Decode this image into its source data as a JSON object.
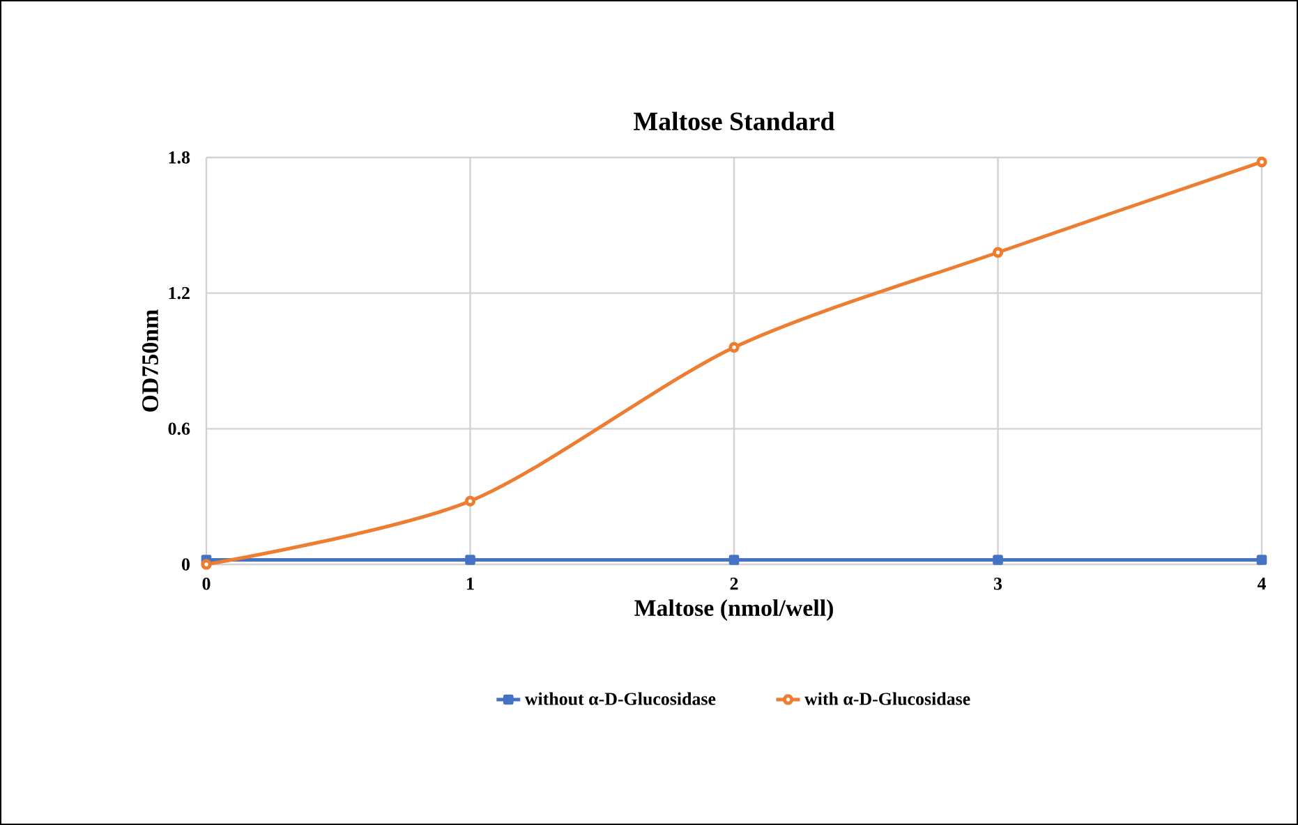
{
  "chart_data": {
    "type": "line",
    "title": "Maltose Standard",
    "xlabel": "Maltose (nmol/well)",
    "ylabel": "OD750nm",
    "x": [
      0,
      1,
      2,
      3,
      4
    ],
    "series": [
      {
        "name": "without α-D-Glucosidase",
        "color": "#4472c4",
        "marker": "square",
        "values": [
          0.02,
          0.02,
          0.02,
          0.02,
          0.02
        ]
      },
      {
        "name": "with α-D-Glucosidase",
        "color": "#ed7d31",
        "marker": "circle",
        "values": [
          0,
          0.28,
          0.96,
          1.38,
          1.78
        ]
      }
    ],
    "xlim": [
      0,
      4
    ],
    "ylim": [
      0,
      1.8
    ],
    "xticks": [
      0,
      1,
      2,
      3,
      4
    ],
    "yticks": [
      0,
      0.6,
      1.2,
      1.8
    ],
    "grid": true,
    "legend": "bottom",
    "line_style": "solid"
  }
}
